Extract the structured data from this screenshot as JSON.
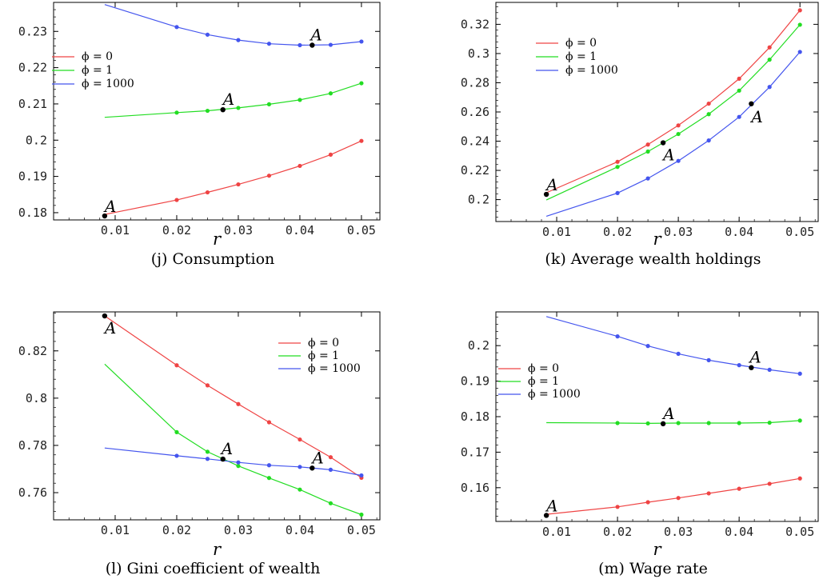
{
  "colors": {
    "phi0": "#ef4444",
    "phi1": "#22dd22",
    "phi1000": "#4455ee",
    "marker": "#000000"
  },
  "legend_labels": [
    "ϕ = 0",
    "ϕ = 1",
    "ϕ = 1000"
  ],
  "chart_data": [
    {
      "type": "line",
      "caption": "(j) Consumption",
      "xlabel": "r",
      "ylabel": "",
      "xlim": [
        0.0,
        0.053
      ],
      "ylim": [
        0.178,
        0.238
      ],
      "xticks": [
        0.01,
        0.02,
        0.03,
        0.04,
        0.05
      ],
      "xtick_labels": [
        "0.01",
        "0.02",
        "0.03",
        "0.04",
        "0.05"
      ],
      "yticks": [
        0.18,
        0.19,
        0.2,
        0.21,
        0.22,
        0.23
      ],
      "ytick_labels": [
        "0.18",
        "0.19",
        "0.2",
        "0.21",
        "0.22",
        "0.23"
      ],
      "legend_position": "left",
      "series": [
        {
          "name": "ϕ = 0",
          "x": [
            0.0083,
            0.02,
            0.025,
            0.03,
            0.035,
            0.04,
            0.045,
            0.05
          ],
          "y": [
            0.1795,
            0.1835,
            0.1856,
            0.1878,
            0.1902,
            0.1929,
            0.196,
            0.1998
          ]
        },
        {
          "name": "ϕ = 1",
          "x": [
            0.0083,
            0.02,
            0.025,
            0.03,
            0.035,
            0.04,
            0.045,
            0.05
          ],
          "y": [
            0.2063,
            0.2076,
            0.2081,
            0.2089,
            0.2099,
            0.2111,
            0.2129,
            0.2157
          ]
        },
        {
          "name": "ϕ = 1000",
          "x": [
            0.0083,
            0.02,
            0.025,
            0.03,
            0.035,
            0.04,
            0.045,
            0.05
          ],
          "y": [
            0.2374,
            0.2312,
            0.2291,
            0.2276,
            0.2266,
            0.2262,
            0.2263,
            0.2272
          ]
        }
      ],
      "markers": [
        {
          "label": "A",
          "x": 0.0083,
          "y": 0.1791
        },
        {
          "label": "A",
          "x": 0.0275,
          "y": 0.2084
        },
        {
          "label": "A",
          "x": 0.042,
          "y": 0.2262
        }
      ]
    },
    {
      "type": "line",
      "caption": "(k) Average wealth holdings",
      "xlabel": "r",
      "ylabel": "",
      "xlim": [
        0.0,
        0.053
      ],
      "ylim": [
        0.185,
        0.335
      ],
      "xticks": [
        0.01,
        0.02,
        0.03,
        0.04,
        0.05
      ],
      "xtick_labels": [
        "0.01",
        "0.02",
        "0.03",
        "0.04",
        "0.05"
      ],
      "yticks": [
        0.2,
        0.22,
        0.24,
        0.26,
        0.28,
        0.3,
        0.32
      ],
      "ytick_labels": [
        "0.2",
        "0.22",
        "0.24",
        "0.26",
        "0.28",
        "0.3",
        "0.32"
      ],
      "legend_position": "top-left",
      "series": [
        {
          "name": "ϕ = 0",
          "x": [
            0.0083,
            0.02,
            0.025,
            0.03,
            0.035,
            0.04,
            0.045,
            0.05
          ],
          "y": [
            0.2047,
            0.2259,
            0.2377,
            0.2508,
            0.2657,
            0.2828,
            0.3042,
            0.3296
          ]
        },
        {
          "name": "ϕ = 1",
          "x": [
            0.0083,
            0.02,
            0.025,
            0.03,
            0.035,
            0.04,
            0.045,
            0.05
          ],
          "y": [
            0.1997,
            0.2224,
            0.2329,
            0.2449,
            0.2585,
            0.2746,
            0.2958,
            0.3197
          ]
        },
        {
          "name": "ϕ = 1000",
          "x": [
            0.0083,
            0.02,
            0.025,
            0.03,
            0.035,
            0.04,
            0.045,
            0.05
          ],
          "y": [
            0.1886,
            0.2045,
            0.2145,
            0.2265,
            0.2405,
            0.2566,
            0.2771,
            0.3011
          ]
        }
      ],
      "markers": [
        {
          "label": "A",
          "x": 0.0083,
          "y": 0.2036
        },
        {
          "label": "A",
          "x": 0.0275,
          "y": 0.2389
        },
        {
          "label": "A",
          "x": 0.042,
          "y": 0.2656
        }
      ]
    },
    {
      "type": "line",
      "caption": "(l) Gini coefficient of wealth",
      "xlabel": "r",
      "ylabel": "",
      "xlim": [
        0.0,
        0.053
      ],
      "ylim": [
        0.7485,
        0.8365
      ],
      "xticks": [
        0.01,
        0.02,
        0.03,
        0.04,
        0.05
      ],
      "xtick_labels": [
        "0.01",
        "0.02",
        "0.03",
        "0.04",
        "0.05"
      ],
      "yticks": [
        0.76,
        0.78,
        0.8,
        0.82
      ],
      "ytick_labels": [
        "0.76",
        "0.78",
        "0.8",
        "0.82"
      ],
      "legend_position": "top-right",
      "series": [
        {
          "name": "ϕ = 0",
          "x": [
            0.0083,
            0.02,
            0.025,
            0.03,
            0.035,
            0.04,
            0.045,
            0.05
          ],
          "y": [
            0.8348,
            0.8139,
            0.8054,
            0.7975,
            0.7898,
            0.7825,
            0.775,
            0.7663
          ]
        },
        {
          "name": "ϕ = 1",
          "x": [
            0.0083,
            0.02,
            0.025,
            0.03,
            0.035,
            0.04,
            0.045,
            0.05
          ],
          "y": [
            0.8144,
            0.7856,
            0.7773,
            0.7713,
            0.7662,
            0.7613,
            0.7555,
            0.7507
          ]
        },
        {
          "name": "ϕ = 1000",
          "x": [
            0.0083,
            0.02,
            0.025,
            0.03,
            0.035,
            0.04,
            0.045,
            0.05
          ],
          "y": [
            0.7789,
            0.7756,
            0.7743,
            0.7728,
            0.7716,
            0.7709,
            0.7697,
            0.7673
          ]
        }
      ],
      "markers": [
        {
          "label": "A",
          "x": 0.0083,
          "y": 0.8348
        },
        {
          "label": "A",
          "x": 0.0275,
          "y": 0.7742
        },
        {
          "label": "A",
          "x": 0.042,
          "y": 0.7704
        }
      ]
    },
    {
      "type": "line",
      "caption": "(m) Wage rate",
      "xlabel": "r",
      "ylabel": "",
      "xlim": [
        0.0,
        0.053
      ],
      "ylim": [
        0.1505,
        0.2095
      ],
      "xticks": [
        0.01,
        0.02,
        0.03,
        0.04,
        0.05
      ],
      "xtick_labels": [
        "0.01",
        "0.02",
        "0.03",
        "0.04",
        "0.05"
      ],
      "yticks": [
        0.16,
        0.17,
        0.18,
        0.19,
        0.2
      ],
      "ytick_labels": [
        "0.16",
        "0.17",
        "0.18",
        "0.19",
        "0.2"
      ],
      "legend_position": "left",
      "series": [
        {
          "name": "ϕ = 0",
          "x": [
            0.0083,
            0.02,
            0.025,
            0.03,
            0.035,
            0.04,
            0.045,
            0.05
          ],
          "y": [
            0.1525,
            0.1546,
            0.1559,
            0.1571,
            0.1584,
            0.1597,
            0.1611,
            0.1626
          ]
        },
        {
          "name": "ϕ = 1",
          "x": [
            0.0083,
            0.02,
            0.025,
            0.03,
            0.035,
            0.04,
            0.045,
            0.05
          ],
          "y": [
            0.1783,
            0.1782,
            0.1781,
            0.1782,
            0.1782,
            0.1782,
            0.1783,
            0.1789
          ]
        },
        {
          "name": "ϕ = 1000",
          "x": [
            0.0083,
            0.02,
            0.025,
            0.03,
            0.035,
            0.04,
            0.045,
            0.05
          ],
          "y": [
            0.2082,
            0.2026,
            0.1999,
            0.1977,
            0.1959,
            0.1945,
            0.1932,
            0.1921
          ]
        }
      ],
      "markers": [
        {
          "label": "A",
          "x": 0.0083,
          "y": 0.1522
        },
        {
          "label": "A",
          "x": 0.0275,
          "y": 0.178
        },
        {
          "label": "A",
          "x": 0.042,
          "y": 0.1938
        }
      ]
    }
  ]
}
